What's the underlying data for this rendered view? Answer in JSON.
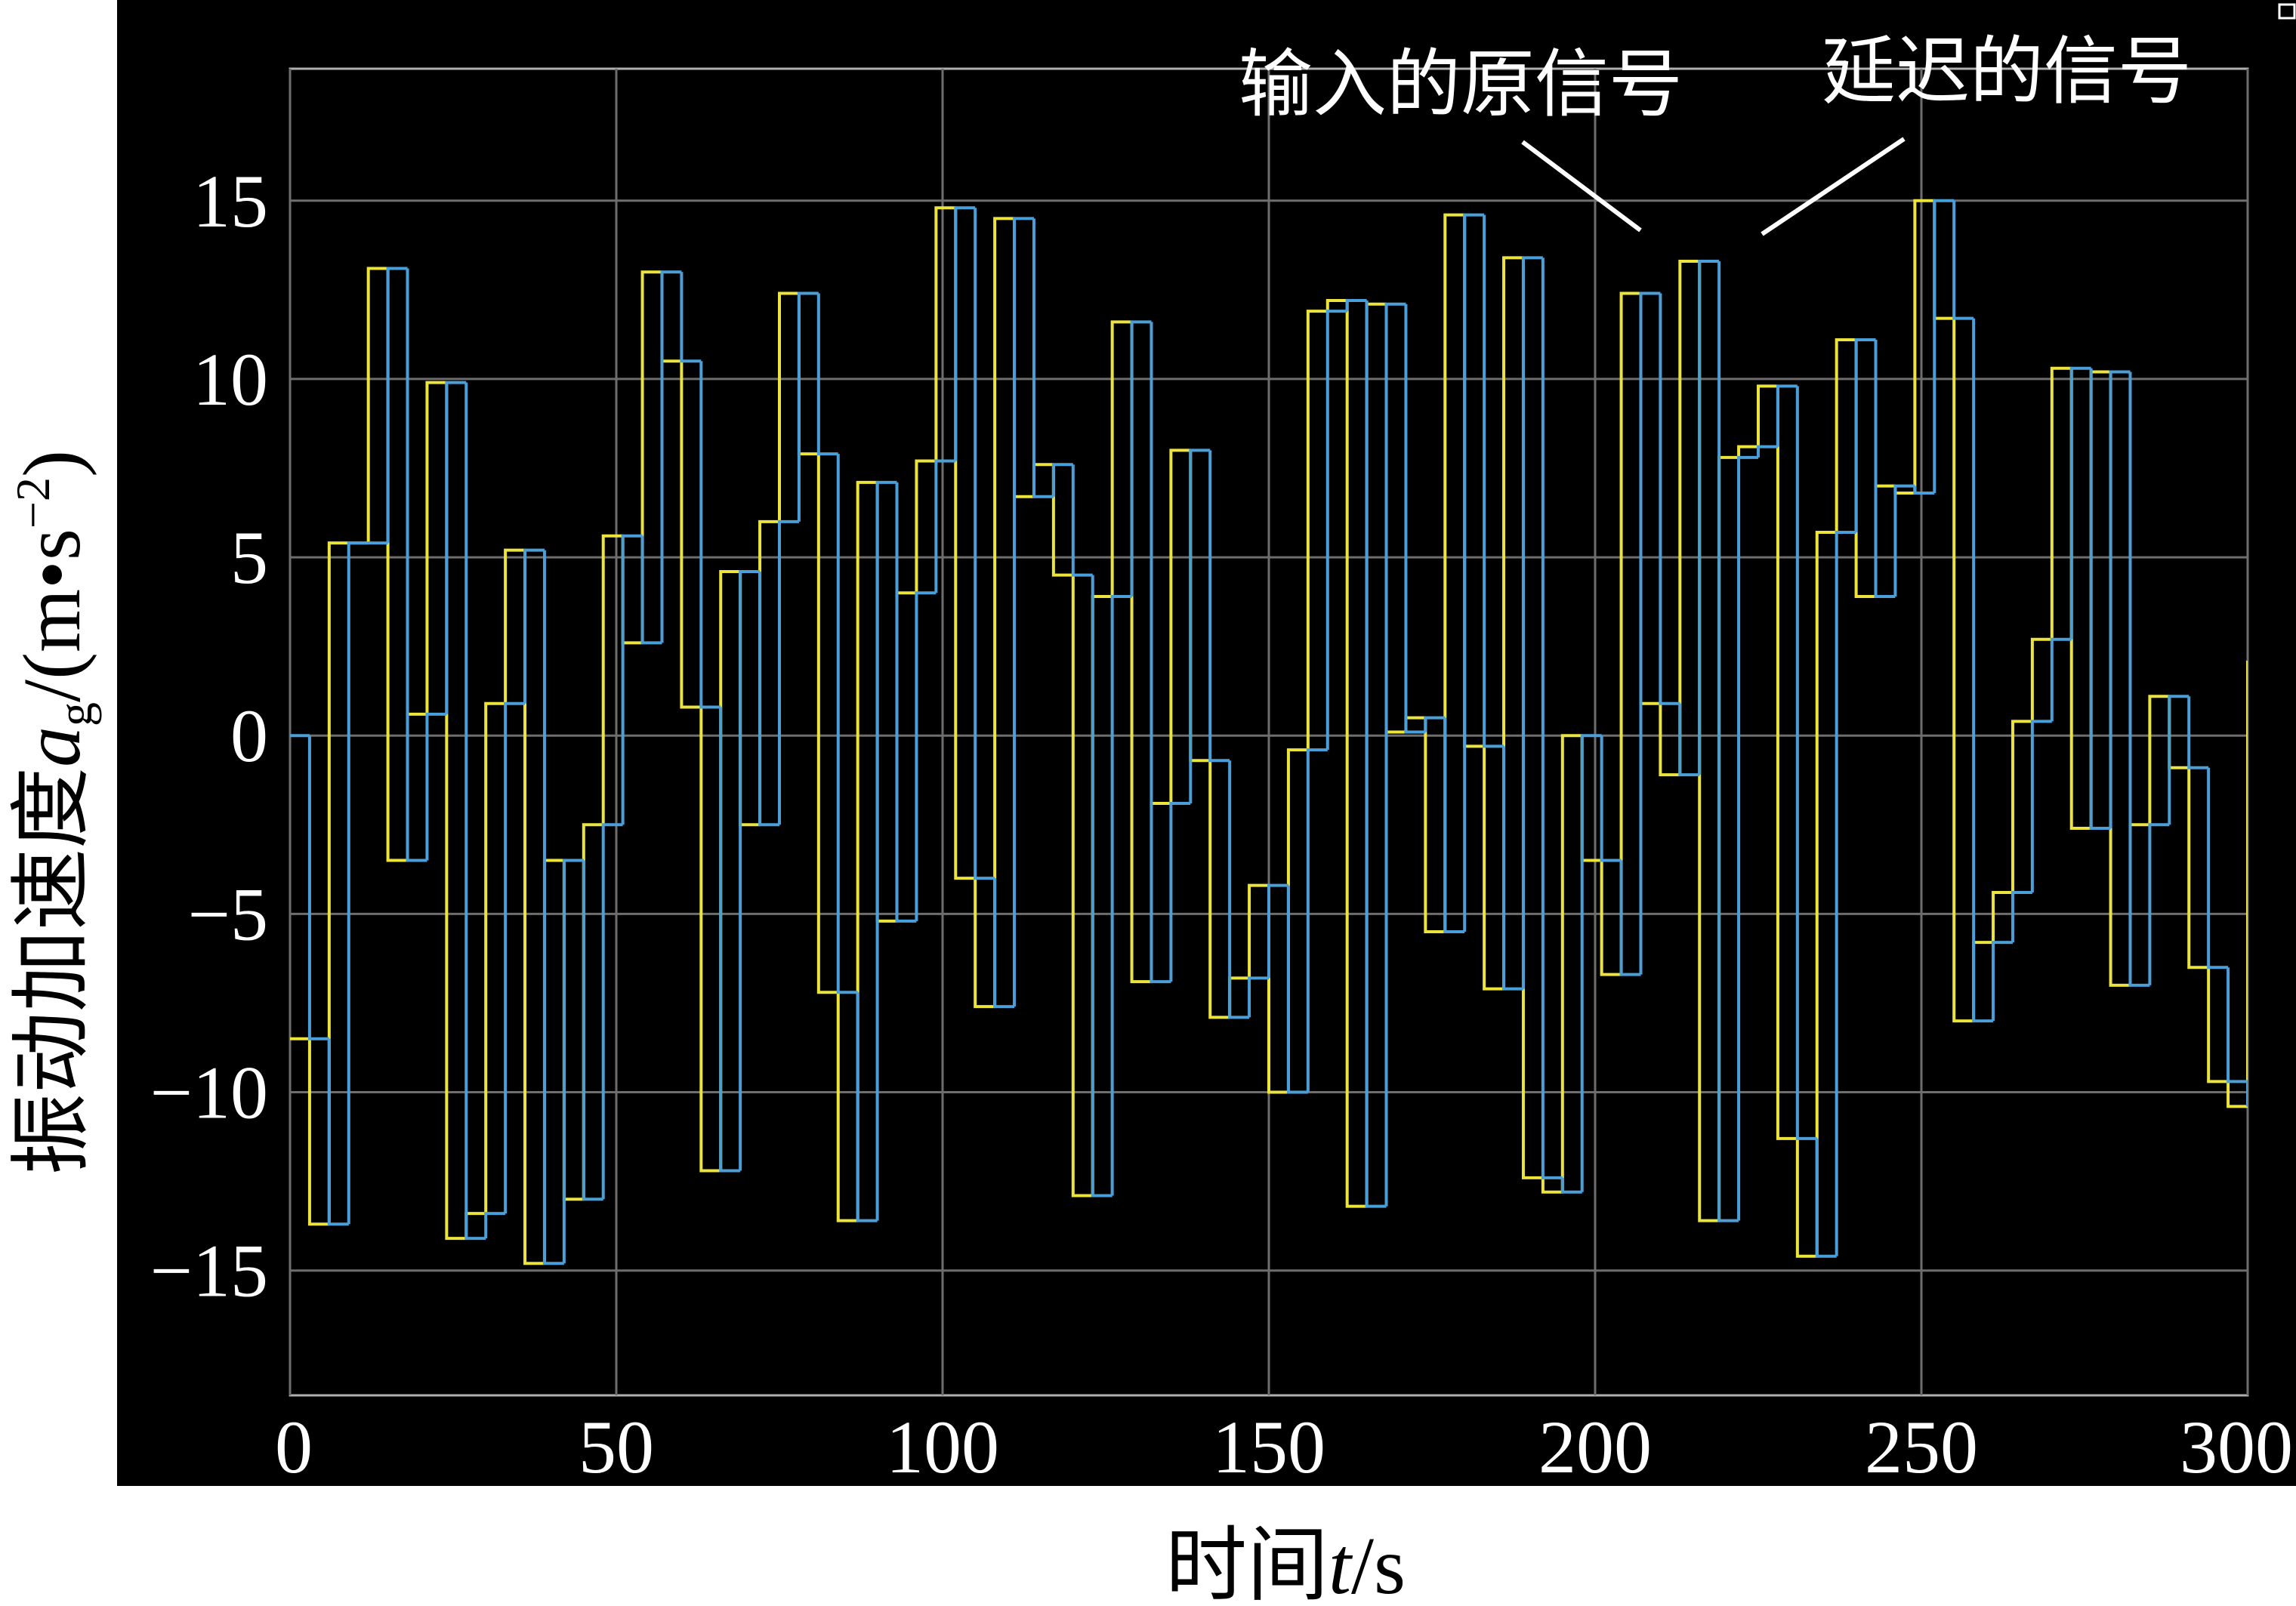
{
  "chart_data": {
    "type": "step",
    "xlabel": {
      "text": "时间",
      "symbol": "t",
      "unit": "/s"
    },
    "ylabel": {
      "text": "振动加速度",
      "symbol": "a",
      "subscript": "g",
      "unit": "/(m•s",
      "exponent": "−2",
      "close": ")"
    },
    "x": [
      0,
      3,
      6,
      9,
      12,
      15,
      18,
      21,
      24,
      27,
      30,
      33,
      36,
      39,
      42,
      45,
      48,
      51,
      54,
      57,
      60,
      63,
      66,
      69,
      72,
      75,
      78,
      81,
      84,
      87,
      90,
      93,
      96,
      99,
      102,
      105,
      108,
      111,
      114,
      117,
      120,
      123,
      126,
      129,
      132,
      135,
      138,
      141,
      144,
      147,
      150,
      153,
      156,
      159,
      162,
      165,
      168,
      171,
      174,
      177,
      180,
      183,
      186,
      189,
      192,
      195,
      198,
      201,
      204,
      207,
      210,
      213,
      216,
      219,
      222,
      225,
      228,
      231,
      234,
      237,
      240,
      243,
      246,
      249,
      252,
      255,
      258,
      261,
      264,
      267,
      270,
      273,
      276,
      279,
      282,
      285,
      288,
      291,
      294,
      297,
      300
    ],
    "series": [
      {
        "name": "输入的原信号",
        "color": "#ece43c",
        "values": [
          -8.5,
          -13.7,
          5.4,
          5.4,
          13.1,
          -3.5,
          0.6,
          9.9,
          -14.1,
          -13.4,
          0.9,
          5.2,
          -14.8,
          -3.5,
          -13.0,
          -2.5,
          5.6,
          2.6,
          13.0,
          10.5,
          0.8,
          -12.2,
          4.6,
          -2.5,
          6.0,
          12.4,
          7.9,
          -7.2,
          -13.6,
          7.1,
          -5.2,
          4.0,
          7.7,
          14.8,
          -4.0,
          -7.6,
          14.5,
          6.7,
          7.6,
          4.5,
          -12.9,
          3.9,
          11.6,
          -6.9,
          -1.9,
          8.0,
          -0.7,
          -7.9,
          -6.8,
          -4.2,
          -10.0,
          -0.4,
          11.9,
          12.2,
          -13.2,
          12.1,
          0.1,
          0.5,
          -5.5,
          14.6,
          -0.3,
          -7.1,
          13.4,
          -12.4,
          -12.8,
          0.0,
          -3.5,
          -6.7,
          12.4,
          0.9,
          -1.1,
          13.3,
          -13.6,
          7.8,
          8.1,
          9.8,
          -11.3,
          -14.6,
          5.7,
          11.1,
          3.9,
          7.0,
          6.8,
          15.0,
          11.7,
          -8.0,
          -5.8,
          -4.4,
          0.4,
          2.7,
          10.3,
          -2.6,
          10.2,
          -7.0,
          -2.5,
          1.1,
          -0.9,
          -6.5,
          -9.7,
          -10.4,
          2.1
        ]
      },
      {
        "name": "延迟的信号",
        "color": "#4a9fd8",
        "values": [
          0.0,
          -8.5,
          -13.7,
          5.4,
          5.4,
          13.1,
          -3.5,
          0.6,
          9.9,
          -14.1,
          -13.4,
          0.9,
          5.2,
          -14.8,
          -3.5,
          -13.0,
          -2.5,
          5.6,
          2.6,
          13.0,
          10.5,
          0.8,
          -12.2,
          4.6,
          -2.5,
          6.0,
          12.4,
          7.9,
          -7.2,
          -13.6,
          7.1,
          -5.2,
          4.0,
          7.7,
          14.8,
          -4.0,
          -7.6,
          14.5,
          6.7,
          7.6,
          4.5,
          -12.9,
          3.9,
          11.6,
          -6.9,
          -1.9,
          8.0,
          -0.7,
          -7.9,
          -6.8,
          -4.2,
          -10.0,
          -0.4,
          11.9,
          12.2,
          -13.2,
          12.1,
          0.1,
          0.5,
          -5.5,
          14.6,
          -0.3,
          -7.1,
          13.4,
          -12.4,
          -12.8,
          0.0,
          -3.5,
          -6.7,
          12.4,
          0.9,
          -1.1,
          13.3,
          -13.6,
          7.8,
          8.1,
          9.8,
          -11.3,
          -14.6,
          5.7,
          11.1,
          3.9,
          7.0,
          6.8,
          15.0,
          11.7,
          -8.0,
          -5.8,
          -4.4,
          0.4,
          2.7,
          10.3,
          -2.6,
          10.2,
          -7.0,
          -2.5,
          1.1,
          -0.9,
          -6.5,
          -9.7,
          -10.4
        ]
      }
    ],
    "xlim": [
      0,
      300
    ],
    "xticks": [
      0,
      50,
      100,
      150,
      200,
      250,
      300
    ],
    "ylim": [
      -18.5,
      18.7
    ],
    "yticks": [
      {
        "value": -15,
        "label": "−15"
      },
      {
        "value": -10,
        "label": "−10"
      },
      {
        "value": -5,
        "label": "−5"
      },
      0,
      5,
      10,
      15
    ],
    "grid": true
  }
}
